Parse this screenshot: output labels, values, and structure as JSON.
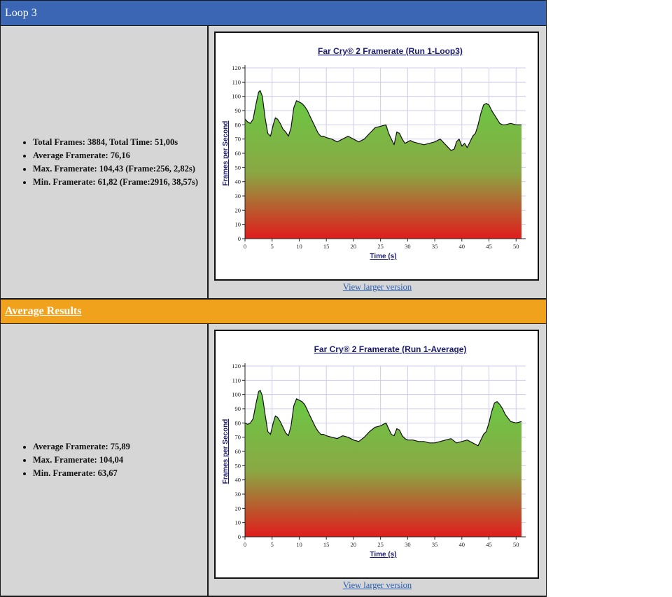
{
  "loop3": {
    "header": "Loop 3",
    "stats": [
      "Total Frames: 3884, Total Time: 51,00s",
      "Average Framerate: 76,16",
      "Max. Framerate: 104,43 (Frame:256, 2,82s)",
      "Min. Framerate: 61,82 (Frame:2916, 38,57s)"
    ],
    "link_label": "View larger version"
  },
  "average": {
    "header": "Average Results",
    "stats": [
      "Average Framerate: 75,89",
      "Max. Framerate: 104,04",
      "Min. Framerate: 63,67"
    ],
    "link_label": "View larger version"
  },
  "colors": {
    "header_blue": "#3b66b4",
    "header_orange": "#f0a21c",
    "panel_gray": "#d6d6d6",
    "fill_top": "#66cc44",
    "fill_bottom": "#e01c1c",
    "title_color": "#1a1a6e",
    "grid_color": "#ccccee"
  },
  "chart_data": [
    {
      "type": "area",
      "title": "Far Cry® 2 Framerate (Run 1-Loop3)",
      "xlabel": "Time (s)",
      "ylabel": "Frames per Second",
      "xlim": [
        0,
        51
      ],
      "ylim": [
        0,
        120
      ],
      "x_ticks": [
        0,
        5,
        10,
        15,
        20,
        25,
        30,
        35,
        40,
        45,
        50
      ],
      "y_ticks": [
        0,
        10,
        20,
        30,
        40,
        50,
        60,
        70,
        80,
        90,
        100,
        110,
        120
      ],
      "grid": true,
      "x": [
        0,
        0.5,
        1,
        1.5,
        2,
        2.5,
        2.8,
        3.2,
        3.7,
        4.2,
        4.7,
        5.2,
        5.6,
        6,
        6.5,
        7,
        7.5,
        8,
        8.5,
        9,
        9.5,
        10,
        10.5,
        11,
        11.5,
        12,
        12.5,
        13,
        13.5,
        14,
        14.5,
        15,
        16,
        17,
        18,
        19,
        20,
        21,
        22,
        23,
        24,
        25,
        26,
        26.5,
        27,
        27.5,
        28,
        28.5,
        29,
        29.5,
        30,
        30.5,
        31,
        32,
        33,
        34,
        35,
        36,
        37,
        38,
        38.6,
        39,
        39.5,
        40,
        40.5,
        41,
        41.5,
        42,
        42.5,
        43,
        43.5,
        44,
        44.5,
        45,
        45.5,
        46,
        46.5,
        47,
        47.5,
        48,
        49,
        50,
        51
      ],
      "y": [
        84,
        82,
        81,
        84,
        94,
        103,
        104,
        100,
        85,
        74,
        72,
        80,
        85,
        84,
        81,
        77,
        75,
        72,
        78,
        92,
        97,
        96,
        95,
        93,
        90,
        86,
        82,
        78,
        74,
        72,
        72,
        71,
        70,
        68,
        70,
        72,
        70,
        68,
        70,
        74,
        78,
        79,
        80,
        74,
        70,
        66,
        75,
        74,
        70,
        67,
        68,
        69,
        68,
        67,
        66,
        67,
        68,
        70,
        66,
        62,
        63,
        68,
        70,
        65,
        67,
        64,
        68,
        72,
        74,
        80,
        88,
        94,
        95,
        94,
        90,
        87,
        84,
        81,
        80,
        80,
        81,
        80,
        80
      ]
    },
    {
      "type": "area",
      "title": "Far Cry® 2 Framerate (Run 1-Average)",
      "xlabel": "Time (s)",
      "ylabel": "Frames per Second",
      "xlim": [
        0,
        51
      ],
      "ylim": [
        0,
        120
      ],
      "x_ticks": [
        0,
        5,
        10,
        15,
        20,
        25,
        30,
        35,
        40,
        45,
        50
      ],
      "y_ticks": [
        0,
        10,
        20,
        30,
        40,
        50,
        60,
        70,
        80,
        90,
        100,
        110,
        120
      ],
      "grid": true,
      "x": [
        0,
        0.5,
        1,
        1.5,
        2,
        2.5,
        2.8,
        3.2,
        3.7,
        4.2,
        4.7,
        5.2,
        5.6,
        6,
        6.5,
        7,
        7.5,
        8,
        8.5,
        9,
        9.5,
        10,
        10.5,
        11,
        11.5,
        12,
        12.5,
        13,
        13.5,
        14,
        14.5,
        15,
        16,
        17,
        18,
        19,
        20,
        21,
        22,
        23,
        24,
        25,
        26,
        26.5,
        27,
        27.5,
        28,
        28.5,
        29,
        29.5,
        30,
        31,
        32,
        33,
        34,
        35,
        36,
        37,
        38,
        39,
        40,
        41,
        42,
        43,
        43.5,
        44,
        44.5,
        45,
        45.5,
        46,
        46.5,
        47,
        47.5,
        48,
        49,
        50,
        51
      ],
      "y": [
        80,
        79,
        80,
        83,
        93,
        102,
        103,
        99,
        86,
        74,
        72,
        80,
        85,
        84,
        81,
        77,
        73,
        71,
        78,
        92,
        97,
        96,
        95,
        93,
        89,
        85,
        81,
        77,
        74,
        72,
        72,
        71,
        70,
        69,
        71,
        70,
        68,
        67,
        70,
        74,
        77,
        78,
        80,
        76,
        72,
        71,
        76,
        75,
        71,
        69,
        68,
        68,
        67,
        67,
        66,
        66,
        67,
        68,
        69,
        66,
        67,
        68,
        66,
        64,
        68,
        72,
        74,
        80,
        88,
        94,
        95,
        93,
        90,
        86,
        81,
        80,
        81
      ]
    }
  ]
}
